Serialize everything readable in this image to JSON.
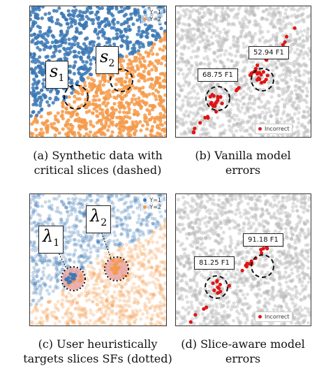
{
  "panels": {
    "a": {
      "caption_line1": "(a) Synthetic data with",
      "caption_line2": "critical slices (dashed)",
      "legend": [
        "Y=1",
        "Y=2"
      ],
      "slice1_symbol": "s",
      "slice1_sub": "1",
      "slice2_symbol": "s",
      "slice2_sub": "2"
    },
    "b": {
      "caption_line1": "(b) Vanilla model",
      "caption_line2": "errors",
      "f1_slice1": "68.75 F1",
      "f1_slice2": "52.94 F1",
      "legend": "Incorrect"
    },
    "c": {
      "caption_line1": "(c) User heuristically",
      "caption_line2": "targets slices SFs (dotted)",
      "legend": [
        "Y=1",
        "Y=2"
      ],
      "slice1_symbol": "λ",
      "slice1_sub": "1",
      "slice2_symbol": "λ",
      "slice2_sub": "2"
    },
    "d": {
      "caption_line1": "(d) Slice-aware model",
      "caption_line2": "errors",
      "f1_slice1": "81.25 F1",
      "f1_slice2": "91.18 F1",
      "legend": "Incorrect"
    }
  },
  "colors": {
    "class1": "#3b78b4",
    "class2": "#f49a4a",
    "neutral": "#b9b9b9",
    "incorrect": "#e01414",
    "slice_fill": "#e9a3a3"
  }
}
